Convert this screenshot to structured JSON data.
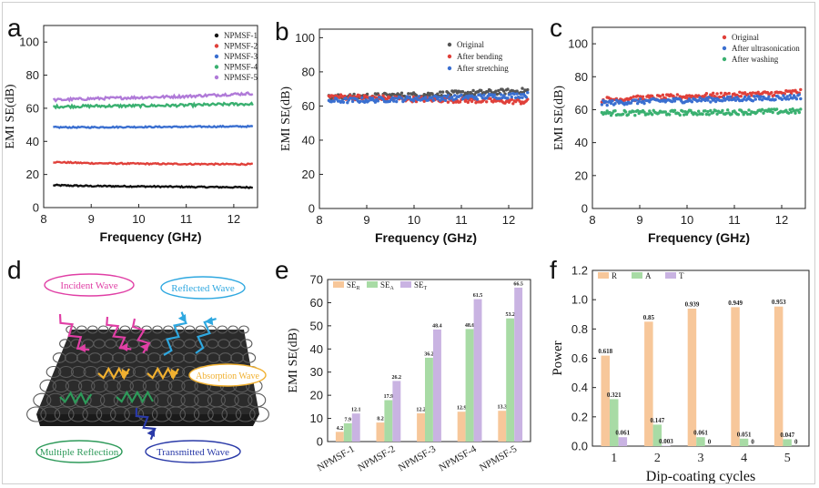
{
  "chart_data": [
    {
      "panel": "a",
      "type": "line",
      "xlabel": "Frequency (GHz)",
      "ylabel": "EMI SE(dB)",
      "xlim": [
        8,
        12.5
      ],
      "ylim": [
        0,
        110
      ],
      "xticks": [
        "8",
        "9",
        "10",
        "11",
        "12"
      ],
      "yticks": [
        "0",
        "20",
        "40",
        "60",
        "80",
        "100"
      ],
      "legend_position": "top-right",
      "series": [
        {
          "name": "NPMSF-1",
          "color": "#111111",
          "x": [
            8.2,
            9,
            10,
            11,
            12,
            12.4
          ],
          "values": [
            13.5,
            13,
            12.8,
            12.5,
            12.3,
            12.2
          ]
        },
        {
          "name": "NPMSF-2",
          "color": "#e0403a",
          "x": [
            8.2,
            9,
            10,
            11,
            12,
            12.4
          ],
          "values": [
            27.5,
            26.8,
            26.5,
            26.3,
            26.2,
            26.2
          ]
        },
        {
          "name": "NPMSF-3",
          "color": "#3a6fd0",
          "x": [
            8.2,
            9,
            10,
            11,
            12,
            12.4
          ],
          "values": [
            48.5,
            48.5,
            48.7,
            48.8,
            49,
            49
          ]
        },
        {
          "name": "NPMSF-4",
          "color": "#3ab070",
          "x": [
            8.2,
            9,
            10,
            11,
            12,
            12.4
          ],
          "values": [
            61,
            61.3,
            61.5,
            61.8,
            62.5,
            62.5
          ]
        },
        {
          "name": "NPMSF-5",
          "color": "#b07ad8",
          "x": [
            8.2,
            9,
            10,
            11,
            12,
            12.4
          ],
          "values": [
            65,
            65.8,
            66.5,
            67.2,
            68.5,
            69
          ]
        }
      ]
    },
    {
      "panel": "b",
      "type": "scatter",
      "xlabel": "Frequency (GHz)",
      "ylabel": "EMI SE(dB)",
      "xlim": [
        8,
        12.5
      ],
      "ylim": [
        0,
        105
      ],
      "xticks": [
        "8",
        "9",
        "10",
        "11",
        "12"
      ],
      "yticks": [
        "0",
        "20",
        "40",
        "60",
        "80",
        "100"
      ],
      "legend_position": "top-center",
      "series": [
        {
          "name": "Original",
          "color": "#555555",
          "x": [
            8.2,
            9,
            10,
            11,
            12,
            12.4
          ],
          "values": [
            65,
            65.8,
            66.5,
            67.5,
            68.5,
            69
          ]
        },
        {
          "name": "After bending",
          "color": "#e0403a",
          "x": [
            8.2,
            9,
            10,
            11,
            12,
            12.4
          ],
          "values": [
            65.5,
            65,
            64,
            63.5,
            62.8,
            62.5
          ]
        },
        {
          "name": "After stretching",
          "color": "#3a6fd0",
          "x": [
            8.2,
            9,
            10,
            11,
            12,
            12.4
          ],
          "values": [
            63,
            63.5,
            64.3,
            65,
            66,
            66.5
          ]
        }
      ]
    },
    {
      "panel": "c",
      "type": "scatter",
      "xlabel": "Frequency (GHz)",
      "ylabel": "EMI SE(dB)",
      "xlim": [
        8,
        12.5
      ],
      "ylim": [
        0,
        110
      ],
      "xticks": [
        "8",
        "9",
        "10",
        "11",
        "12"
      ],
      "yticks": [
        "0",
        "20",
        "40",
        "60",
        "80",
        "100"
      ],
      "legend_position": "top-center",
      "series": [
        {
          "name": "Original",
          "color": "#e0403a",
          "x": [
            8.2,
            9,
            10,
            11,
            12,
            12.4
          ],
          "values": [
            66,
            67,
            68,
            69,
            70,
            71
          ]
        },
        {
          "name": "After ultrasonication",
          "color": "#3a6fd0",
          "x": [
            8.2,
            9,
            10,
            11,
            12,
            12.4
          ],
          "values": [
            64,
            65,
            65.8,
            66.5,
            67.3,
            68
          ]
        },
        {
          "name": "After washing",
          "color": "#3ab070",
          "x": [
            8.2,
            9,
            10,
            11,
            12,
            12.4
          ],
          "values": [
            58,
            58,
            58.2,
            58.5,
            59,
            59
          ]
        }
      ]
    },
    {
      "panel": "e",
      "type": "bar",
      "xlabel": "",
      "ylabel": "EMI SE(dB)",
      "ylim": [
        0,
        70
      ],
      "yticks": [
        "0",
        "10",
        "20",
        "30",
        "40",
        "50",
        "60",
        "70"
      ],
      "categories": [
        "NPMSF-1",
        "NPMSF-2",
        "NPMSF-3",
        "NPMSF-4",
        "NPMSF-5"
      ],
      "legend_position": "top-left",
      "series": [
        {
          "name": "SE",
          "sub": "R",
          "color": "#f7c79a",
          "values": [
            4.2,
            8.2,
            12.2,
            12.9,
            13.3
          ],
          "labels": [
            "4.2",
            "8.2",
            "12.2",
            "12.9",
            "13.3"
          ]
        },
        {
          "name": "SE",
          "sub": "A",
          "color": "#a8dba5",
          "values": [
            7.9,
            17.9,
            36.2,
            48.6,
            53.2
          ],
          "labels": [
            "7.9",
            "17.9",
            "36.2",
            "48.6",
            "53.2"
          ]
        },
        {
          "name": "SE",
          "sub": "T",
          "color": "#c9b3e2",
          "values": [
            12.1,
            26.2,
            48.4,
            61.5,
            66.5
          ],
          "labels": [
            "12.1",
            "26.2",
            "48.4",
            "61.5",
            "66.5"
          ]
        }
      ]
    },
    {
      "panel": "f",
      "type": "bar",
      "xlabel": "Dip-coating cycles",
      "ylabel": "Power",
      "ylim": [
        0,
        1.2
      ],
      "yticks": [
        "0.0",
        "0.2",
        "0.4",
        "0.6",
        "0.8",
        "1.0",
        "1.2"
      ],
      "categories": [
        "1",
        "2",
        "3",
        "4",
        "5"
      ],
      "legend_position": "top-left",
      "series": [
        {
          "name": "R",
          "color": "#f7c79a",
          "values": [
            0.618,
            0.85,
            0.939,
            0.949,
            0.953
          ],
          "labels": [
            "0.618",
            "0.85",
            "0.939",
            "0.949",
            "0.953"
          ]
        },
        {
          "name": "A",
          "color": "#a8dba5",
          "values": [
            0.321,
            0.147,
            0.061,
            0.051,
            0.047
          ],
          "labels": [
            "0.321",
            "0.147",
            "0.061",
            "0.051",
            "0.047"
          ]
        },
        {
          "name": "T",
          "color": "#c9b3e2",
          "values": [
            0.061,
            0.003,
            0,
            0,
            0
          ],
          "labels": [
            "0.061",
            "0.003",
            "0",
            "0",
            "0"
          ]
        }
      ]
    }
  ],
  "panel_d": {
    "letter": "d",
    "labels": {
      "incident": "Incident Wave",
      "reflected": "Reflected Wave",
      "absorption": "Absorption Wave",
      "multiple": "Multiple Reflection",
      "transmitted": "Transmitted Wave"
    },
    "colors": {
      "incident": "#e03fa5",
      "reflected": "#2fa8e0",
      "absorption": "#f0b030",
      "multiple": "#2e9a5a",
      "transmitted": "#2a3aa8"
    }
  }
}
